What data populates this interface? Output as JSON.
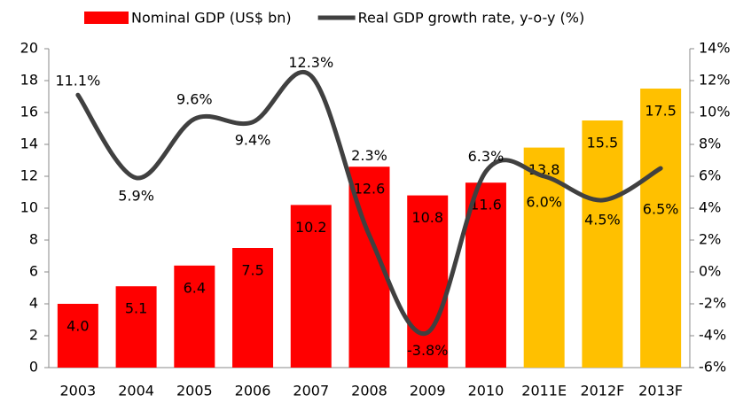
{
  "chart_data": {
    "type": "bar-line",
    "categories": [
      "2003",
      "2004",
      "2005",
      "2006",
      "2007",
      "2008",
      "2009",
      "2010",
      "2011E",
      "2012F",
      "2013F"
    ],
    "series": [
      {
        "name": "Nominal GDP (US$ bn)",
        "type": "bar",
        "color": "#ff0000",
        "colors": [
          "#ff0000",
          "#ff0000",
          "#ff0000",
          "#ff0000",
          "#ff0000",
          "#ff0000",
          "#ff0000",
          "#ff0000",
          "#ffc000",
          "#ffc000",
          "#ffc000"
        ],
        "values": [
          4.0,
          5.1,
          6.4,
          7.5,
          10.2,
          12.6,
          10.8,
          11.6,
          13.8,
          15.5,
          17.5
        ],
        "value_labels": [
          "4.0",
          "5.1",
          "6.4",
          "7.5",
          "10.2",
          "12.6",
          "10.8",
          "11.6",
          "13.8",
          "15.5",
          "17.5"
        ]
      },
      {
        "name": "Real GDP growth rate, y-o-y (%)",
        "type": "line",
        "axis": "y2",
        "color": "#404040",
        "values": [
          11.1,
          5.9,
          9.6,
          9.4,
          12.3,
          2.3,
          -3.8,
          6.3,
          6.0,
          4.5,
          6.5
        ],
        "value_labels": [
          "11.1%",
          "5.9%",
          "9.6%",
          "9.4%",
          "12.3%",
          "2.3%",
          "-3.8%",
          "6.3%",
          "6.0%",
          "4.5%",
          "6.5%"
        ]
      }
    ],
    "ylim": [
      0,
      20
    ],
    "yticks": [
      0,
      2,
      4,
      6,
      8,
      10,
      12,
      14,
      16,
      18,
      20
    ],
    "y2lim": [
      -6,
      14
    ],
    "y2ticks": [
      {
        "value": -6,
        "label": "-6%"
      },
      {
        "value": -4,
        "label": "-4%"
      },
      {
        "value": -2,
        "label": "-2%"
      },
      {
        "value": 0,
        "label": "0%"
      },
      {
        "value": 2,
        "label": "2%"
      },
      {
        "value": 4,
        "label": "4%"
      },
      {
        "value": 6,
        "label": "6%"
      },
      {
        "value": 8,
        "label": "8%"
      },
      {
        "value": 10,
        "label": "10%"
      },
      {
        "value": 12,
        "label": "12%"
      },
      {
        "value": 14,
        "label": "14%"
      }
    ],
    "legend": "top"
  }
}
